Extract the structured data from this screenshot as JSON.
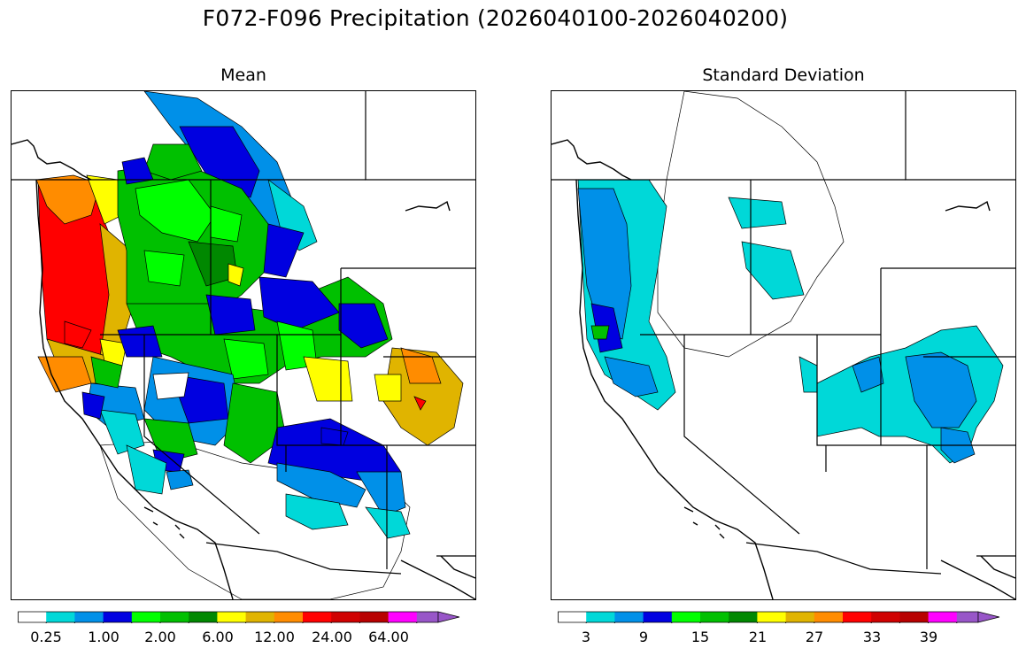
{
  "title": "F072-F096 Precipitation (2026040100-2026040200)",
  "panels": [
    {
      "title": "Mean",
      "colorbar": {
        "colors": [
          "#ffffff",
          "#00d8d8",
          "#0090e8",
          "#0000e0",
          "#00ff00",
          "#00c000",
          "#008800",
          "#ffff00",
          "#e0b400",
          "#ff8c00",
          "#ff0000",
          "#d00000",
          "#b80000",
          "#ff00ff",
          "#9856c8"
        ],
        "tick_labels": [
          "0.25",
          "1.00",
          "2.00",
          "6.00",
          "12.00",
          "24.00",
          "64.00"
        ],
        "extend": "max"
      }
    },
    {
      "title": "Standard Deviation",
      "colorbar": {
        "colors": [
          "#ffffff",
          "#00d8d8",
          "#0090e8",
          "#0000e0",
          "#00ff00",
          "#00c000",
          "#008800",
          "#ffff00",
          "#e0b400",
          "#ff8c00",
          "#ff0000",
          "#d00000",
          "#b80000",
          "#ff00ff",
          "#9856c8"
        ],
        "tick_labels": [
          "3",
          "9",
          "15",
          "21",
          "27",
          "33",
          "39"
        ],
        "extend": "max"
      }
    }
  ]
}
